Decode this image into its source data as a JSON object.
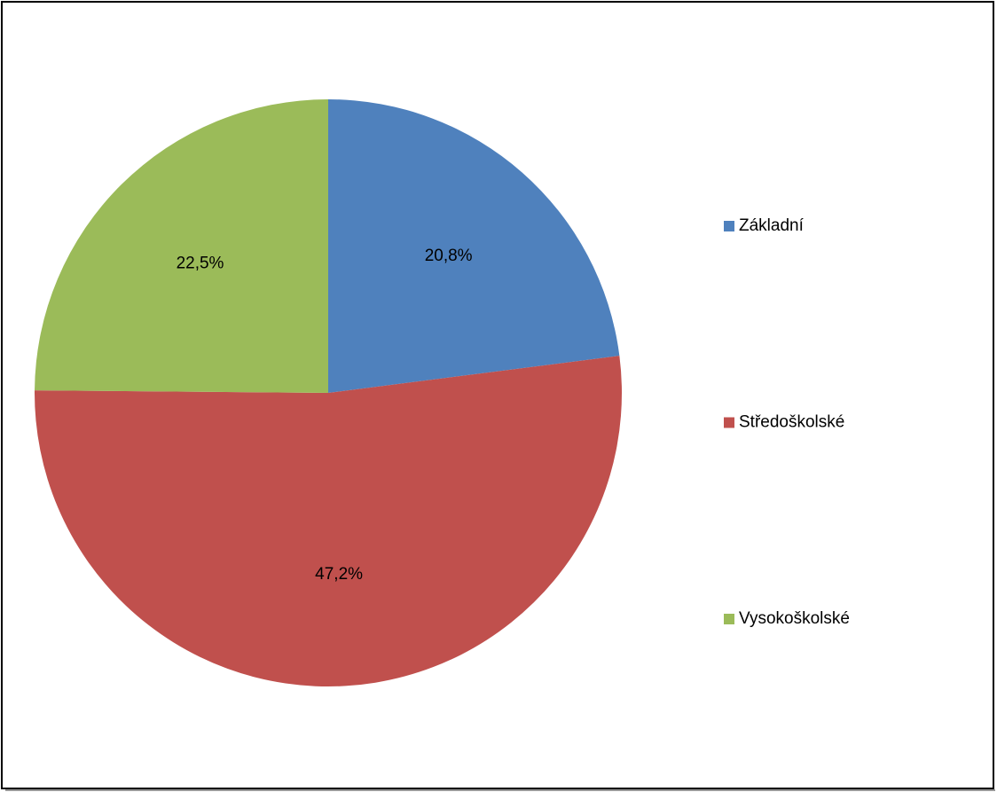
{
  "chart_data": {
    "type": "pie",
    "categories": [
      "Základní",
      "Středoškolské",
      "Vysokoškolské"
    ],
    "values": [
      20.8,
      47.2,
      22.5
    ],
    "value_labels": [
      "20,8%",
      "47,2%",
      "22,5%"
    ],
    "colors": [
      "#4f81bd",
      "#c0504d",
      "#9bbb59"
    ],
    "legend": "right"
  }
}
